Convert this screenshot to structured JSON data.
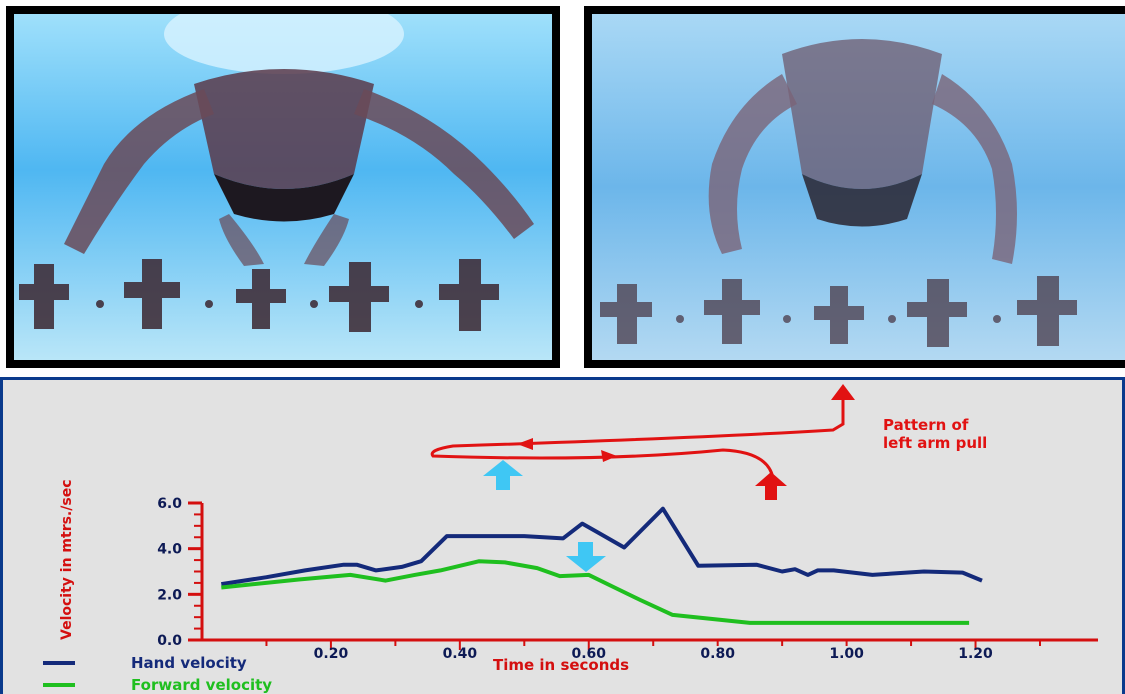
{
  "photos": [
    {
      "name": "swimmer-photo-start"
    },
    {
      "name": "swimmer-photo-mid-pull"
    }
  ],
  "colors": {
    "hand": "#142a7a",
    "forward": "#1fbf1f",
    "axis": "#d40f0f",
    "tick_label": "#0d1a55",
    "annotation": "#e11212",
    "cyan_arrow": "#3fc7f4",
    "panel_bg": "#e2e2e2",
    "panel_border": "#0a3a8c"
  },
  "annotation": {
    "line1": "Pattern of",
    "line2": "left arm pull"
  },
  "chart_data": {
    "type": "line",
    "xlabel": "Time in seconds",
    "ylabel": "Velocity in mtrs./sec",
    "xlim": [
      0.0,
      1.39
    ],
    "ylim": [
      0.0,
      6.0
    ],
    "xticks": [
      "0.20",
      "0.40",
      "0.60",
      "0.80",
      "1.00",
      "1.20"
    ],
    "xtick_values": [
      0.2,
      0.4,
      0.6,
      0.8,
      1.0,
      1.2
    ],
    "yticks": [
      "0.0",
      "2.0",
      "4.0",
      "6.0"
    ],
    "ytick_values": [
      0.0,
      2.0,
      4.0,
      6.0
    ],
    "legend_position": "bottom-left",
    "series": [
      {
        "name": "Hand velocity",
        "color": "#142a7a",
        "points": [
          [
            0.03,
            2.45
          ],
          [
            0.1,
            2.75
          ],
          [
            0.16,
            3.05
          ],
          [
            0.22,
            3.3
          ],
          [
            0.24,
            3.3
          ],
          [
            0.27,
            3.05
          ],
          [
            0.31,
            3.2
          ],
          [
            0.34,
            3.45
          ],
          [
            0.38,
            4.55
          ],
          [
            0.5,
            4.55
          ],
          [
            0.56,
            4.45
          ],
          [
            0.59,
            5.1
          ],
          [
            0.615,
            4.7
          ],
          [
            0.655,
            4.05
          ],
          [
            0.715,
            5.75
          ],
          [
            0.77,
            3.25
          ],
          [
            0.86,
            3.3
          ],
          [
            0.9,
            3.0
          ],
          [
            0.92,
            3.1
          ],
          [
            0.94,
            2.85
          ],
          [
            0.955,
            3.05
          ],
          [
            0.98,
            3.05
          ],
          [
            1.04,
            2.85
          ],
          [
            1.12,
            3.0
          ],
          [
            1.18,
            2.95
          ],
          [
            1.21,
            2.6
          ]
        ]
      },
      {
        "name": "Forward velocity",
        "color": "#1fbf1f",
        "points": [
          [
            0.03,
            2.3
          ],
          [
            0.15,
            2.65
          ],
          [
            0.23,
            2.85
          ],
          [
            0.285,
            2.6
          ],
          [
            0.33,
            2.85
          ],
          [
            0.37,
            3.05
          ],
          [
            0.43,
            3.45
          ],
          [
            0.47,
            3.4
          ],
          [
            0.52,
            3.15
          ],
          [
            0.555,
            2.8
          ],
          [
            0.6,
            2.85
          ],
          [
            0.64,
            2.3
          ],
          [
            0.68,
            1.75
          ],
          [
            0.73,
            1.1
          ],
          [
            0.85,
            0.75
          ],
          [
            1.19,
            0.75
          ]
        ]
      }
    ]
  }
}
